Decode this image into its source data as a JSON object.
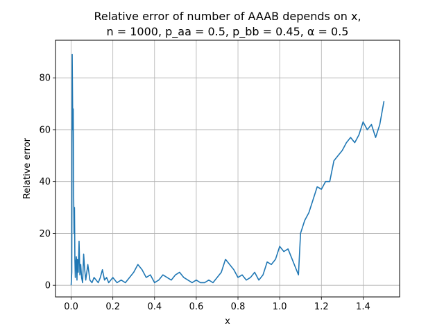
{
  "chart_data": {
    "type": "line",
    "title_line1": "Relative error of number of AAAB depends on x,",
    "title_line2": "n = 1000, p_aa = 0.5, p_bb = 0.45, α = 0.5",
    "xlabel": "x",
    "ylabel": "Relative error",
    "xlim": [
      -0.075,
      1.575
    ],
    "ylim": [
      -4.5,
      94.5
    ],
    "xticks": [
      0.0,
      0.2,
      0.4,
      0.6,
      0.8,
      1.0,
      1.2,
      1.4
    ],
    "xtick_labels": [
      "0.0",
      "0.2",
      "0.4",
      "0.6",
      "0.8",
      "1.0",
      "1.2",
      "1.4"
    ],
    "yticks": [
      0,
      20,
      40,
      60,
      80
    ],
    "ytick_labels": [
      "0",
      "20",
      "40",
      "60",
      "80"
    ],
    "grid": true,
    "series": [
      {
        "color": "#1f77b4",
        "x": [
          0.0,
          0.003,
          0.005,
          0.008,
          0.01,
          0.012,
          0.014,
          0.016,
          0.018,
          0.02,
          0.022,
          0.025,
          0.028,
          0.03,
          0.034,
          0.038,
          0.042,
          0.046,
          0.05,
          0.055,
          0.06,
          0.065,
          0.07,
          0.075,
          0.08,
          0.09,
          0.1,
          0.11,
          0.12,
          0.13,
          0.14,
          0.15,
          0.16,
          0.17,
          0.18,
          0.19,
          0.2,
          0.22,
          0.24,
          0.26,
          0.28,
          0.3,
          0.32,
          0.34,
          0.36,
          0.38,
          0.4,
          0.42,
          0.44,
          0.46,
          0.48,
          0.5,
          0.52,
          0.54,
          0.56,
          0.58,
          0.6,
          0.62,
          0.64,
          0.66,
          0.68,
          0.7,
          0.72,
          0.74,
          0.76,
          0.78,
          0.8,
          0.82,
          0.84,
          0.86,
          0.88,
          0.9,
          0.92,
          0.94,
          0.96,
          0.98,
          1.0,
          1.02,
          1.04,
          1.06,
          1.08,
          1.09,
          1.1,
          1.12,
          1.14,
          1.16,
          1.18,
          1.2,
          1.22,
          1.24,
          1.26,
          1.28,
          1.3,
          1.32,
          1.34,
          1.36,
          1.38,
          1.4,
          1.42,
          1.44,
          1.46,
          1.48,
          1.5
        ],
        "y": [
          0,
          5,
          89,
          60,
          68,
          35,
          20,
          30,
          10,
          3,
          8,
          11,
          2,
          10,
          5,
          17,
          4,
          8,
          3,
          1,
          12,
          6,
          2,
          5,
          8,
          2,
          1,
          3,
          2,
          1,
          3,
          6,
          2,
          3,
          1,
          2,
          3,
          1,
          2,
          1,
          3,
          5,
          8,
          6,
          3,
          4,
          1,
          2,
          4,
          3,
          2,
          4,
          5,
          3,
          2,
          1,
          2,
          1,
          1,
          2,
          1,
          3,
          5,
          10,
          8,
          6,
          3,
          4,
          2,
          3,
          5,
          2,
          4,
          9,
          8,
          10,
          15,
          13,
          14,
          10,
          6,
          4,
          20,
          25,
          28,
          33,
          38,
          37,
          40,
          40,
          48,
          50,
          52,
          55,
          57,
          55,
          58,
          63,
          60,
          62,
          57,
          62,
          71
        ]
      }
    ]
  }
}
